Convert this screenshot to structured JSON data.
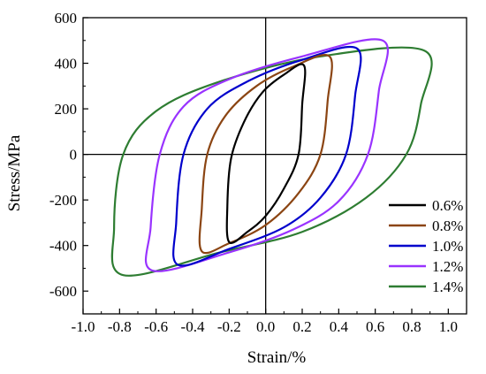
{
  "chart_data": {
    "type": "line",
    "xlabel": "Strain/%",
    "ylabel": "Stress/MPa",
    "xlim": [
      -1.0,
      1.1
    ],
    "ylim": [
      -700,
      600
    ],
    "x_ticks": [
      -1.0,
      -0.8,
      -0.6,
      -0.4,
      -0.2,
      0.0,
      0.2,
      0.4,
      0.6,
      0.8,
      1.0
    ],
    "x_tick_labels": [
      "-1.0",
      "-0.8",
      "-0.6",
      "-0.4",
      "-0.2",
      "0.0",
      "0.2",
      "0.4",
      "0.6",
      "0.8",
      "1.0"
    ],
    "y_ticks": [
      -600,
      -400,
      -200,
      0,
      200,
      400,
      600
    ],
    "y_tick_labels": [
      "-600",
      "-400",
      "-200",
      "0",
      "200",
      "400",
      "600"
    ],
    "grid": false,
    "reference_lines": {
      "x_zero": true,
      "y_zero": true
    },
    "legend": {
      "position": "bottom-right"
    },
    "series": [
      {
        "name": "0.6%",
        "color": "#000000",
        "points": [
          [
            0.21,
            390
          ],
          [
            0.2,
            220
          ],
          [
            0.18,
            0
          ],
          [
            0.1,
            -150
          ],
          [
            0.0,
            -270
          ],
          [
            -0.1,
            -340
          ],
          [
            -0.2,
            -385
          ],
          [
            -0.21,
            -230
          ],
          [
            -0.19,
            -20
          ],
          [
            -0.12,
            140
          ],
          [
            -0.02,
            270
          ],
          [
            0.1,
            350
          ],
          [
            0.21,
            390
          ]
        ]
      },
      {
        "name": "0.8%",
        "color": "#8B4513",
        "points": [
          [
            0.35,
            430
          ],
          [
            0.34,
            240
          ],
          [
            0.3,
            0
          ],
          [
            0.18,
            -170
          ],
          [
            0.0,
            -310
          ],
          [
            -0.2,
            -390
          ],
          [
            -0.35,
            -425
          ],
          [
            -0.35,
            -240
          ],
          [
            -0.32,
            0
          ],
          [
            -0.22,
            170
          ],
          [
            -0.05,
            300
          ],
          [
            0.15,
            385
          ],
          [
            0.35,
            430
          ]
        ]
      },
      {
        "name": "1.0%",
        "color": "#0000CC",
        "points": [
          [
            0.5,
            465
          ],
          [
            0.49,
            260
          ],
          [
            0.44,
            0
          ],
          [
            0.3,
            -190
          ],
          [
            0.1,
            -320
          ],
          [
            -0.2,
            -415
          ],
          [
            -0.48,
            -485
          ],
          [
            -0.49,
            -300
          ],
          [
            -0.45,
            0
          ],
          [
            -0.32,
            200
          ],
          [
            -0.1,
            320
          ],
          [
            0.2,
            415
          ],
          [
            0.5,
            465
          ]
        ]
      },
      {
        "name": "1.2%",
        "color": "#9933FF",
        "points": [
          [
            0.64,
            500
          ],
          [
            0.62,
            280
          ],
          [
            0.56,
            0
          ],
          [
            0.4,
            -205
          ],
          [
            0.15,
            -330
          ],
          [
            -0.2,
            -430
          ],
          [
            -0.62,
            -510
          ],
          [
            -0.63,
            -320
          ],
          [
            -0.58,
            0
          ],
          [
            -0.45,
            210
          ],
          [
            -0.2,
            330
          ],
          [
            0.2,
            430
          ],
          [
            0.64,
            500
          ]
        ]
      },
      {
        "name": "1.4%",
        "color": "#2E7D32",
        "points": [
          [
            0.87,
            455
          ],
          [
            0.85,
            220
          ],
          [
            0.77,
            0
          ],
          [
            0.55,
            -190
          ],
          [
            0.2,
            -340
          ],
          [
            -0.25,
            -430
          ],
          [
            -0.78,
            -530
          ],
          [
            -0.83,
            -320
          ],
          [
            -0.78,
            0
          ],
          [
            -0.6,
            190
          ],
          [
            -0.25,
            320
          ],
          [
            0.3,
            430
          ],
          [
            0.87,
            455
          ]
        ]
      }
    ]
  }
}
